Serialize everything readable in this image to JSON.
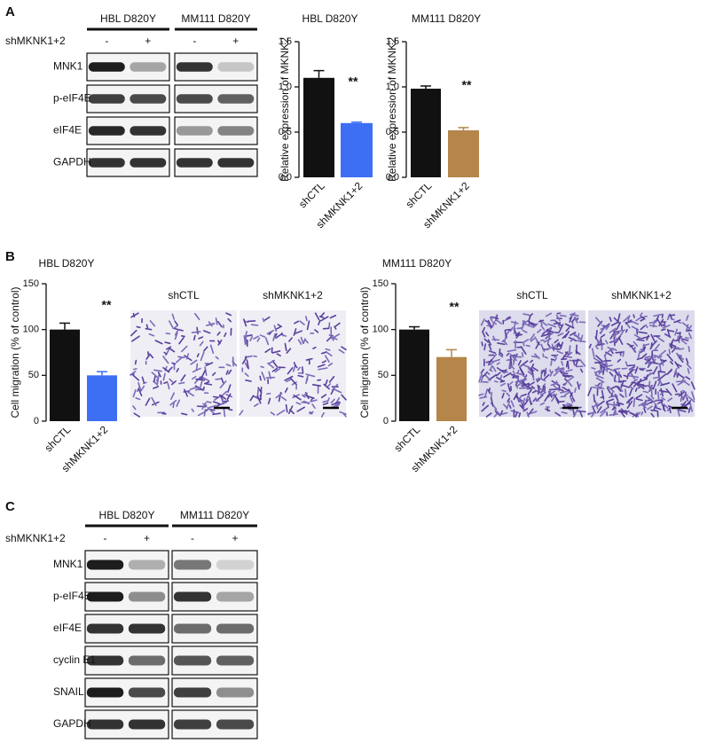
{
  "panel_labels": [
    "A",
    "B",
    "C"
  ],
  "blot_a": {
    "groups": [
      "HBL D820Y",
      "MM111 D820Y"
    ],
    "condition": "shMKNK1+2",
    "lanes": [
      "-",
      "+"
    ],
    "rows": [
      "MNK1",
      "p-eIF4E",
      "eIF4E",
      "GAPDH"
    ]
  },
  "blot_c": {
    "groups": [
      "HBL D820Y",
      "MM111 D820Y"
    ],
    "condition": "shMKNK1+2",
    "lanes": [
      "-",
      "+"
    ],
    "rows": [
      "MNK1",
      "p-eIF4E",
      "eIF4E",
      "cyclin E1",
      "SNAIL",
      "GAPDH"
    ]
  },
  "micrographs": {
    "labels": [
      "shCTL",
      "shMKNK1+2"
    ]
  },
  "chart_data": [
    {
      "type": "bar",
      "title": "HBL D820Y",
      "y_label": "Relative expression of MKNK2",
      "categories": [
        "shCTL",
        "shMKNK1+2"
      ],
      "values": [
        1.1,
        0.6
      ],
      "errors": [
        0.08,
        0.01
      ],
      "colors": [
        "#111111",
        "#3d6ff5"
      ],
      "ylim": [
        0,
        1.5
      ],
      "yticks": [
        {
          "value": 0,
          "label": "0.0"
        },
        0.5,
        {
          "value": 1,
          "label": "1.0"
        },
        1.5
      ],
      "annotation": "**"
    },
    {
      "type": "bar",
      "title": "MM111 D820Y",
      "y_label": "Relative expression of MKNK2",
      "categories": [
        "shCTL",
        "shMKNK1+2"
      ],
      "values": [
        0.98,
        0.52
      ],
      "errors": [
        0.03,
        0.03
      ],
      "colors": [
        "#111111",
        "#b5854a"
      ],
      "ylim": [
        0,
        1.5
      ],
      "yticks": [
        {
          "value": 0,
          "label": "0.0"
        },
        0.5,
        {
          "value": 1,
          "label": "1.0"
        },
        1.5
      ],
      "annotation": "**"
    },
    {
      "type": "bar",
      "title": "HBL D820Y",
      "y_label": "Cell migration (% of control)",
      "categories": [
        "shCTL",
        "shMKNK1+2"
      ],
      "values": [
        100,
        50
      ],
      "errors": [
        7,
        4
      ],
      "colors": [
        "#111111",
        "#3d6ff5"
      ],
      "ylim": [
        0,
        150
      ],
      "yticks": [
        0,
        50,
        100,
        150
      ],
      "annotation": "**"
    },
    {
      "type": "bar",
      "title": "MM111 D820Y",
      "y_label": "Cell migration (% of control)",
      "categories": [
        "shCTL",
        "shMKNK1+2"
      ],
      "values": [
        100,
        70
      ],
      "errors": [
        3,
        8
      ],
      "colors": [
        "#111111",
        "#b5854a"
      ],
      "ylim": [
        0,
        150
      ],
      "yticks": [
        0,
        50,
        100,
        150
      ],
      "annotation": "**"
    }
  ]
}
